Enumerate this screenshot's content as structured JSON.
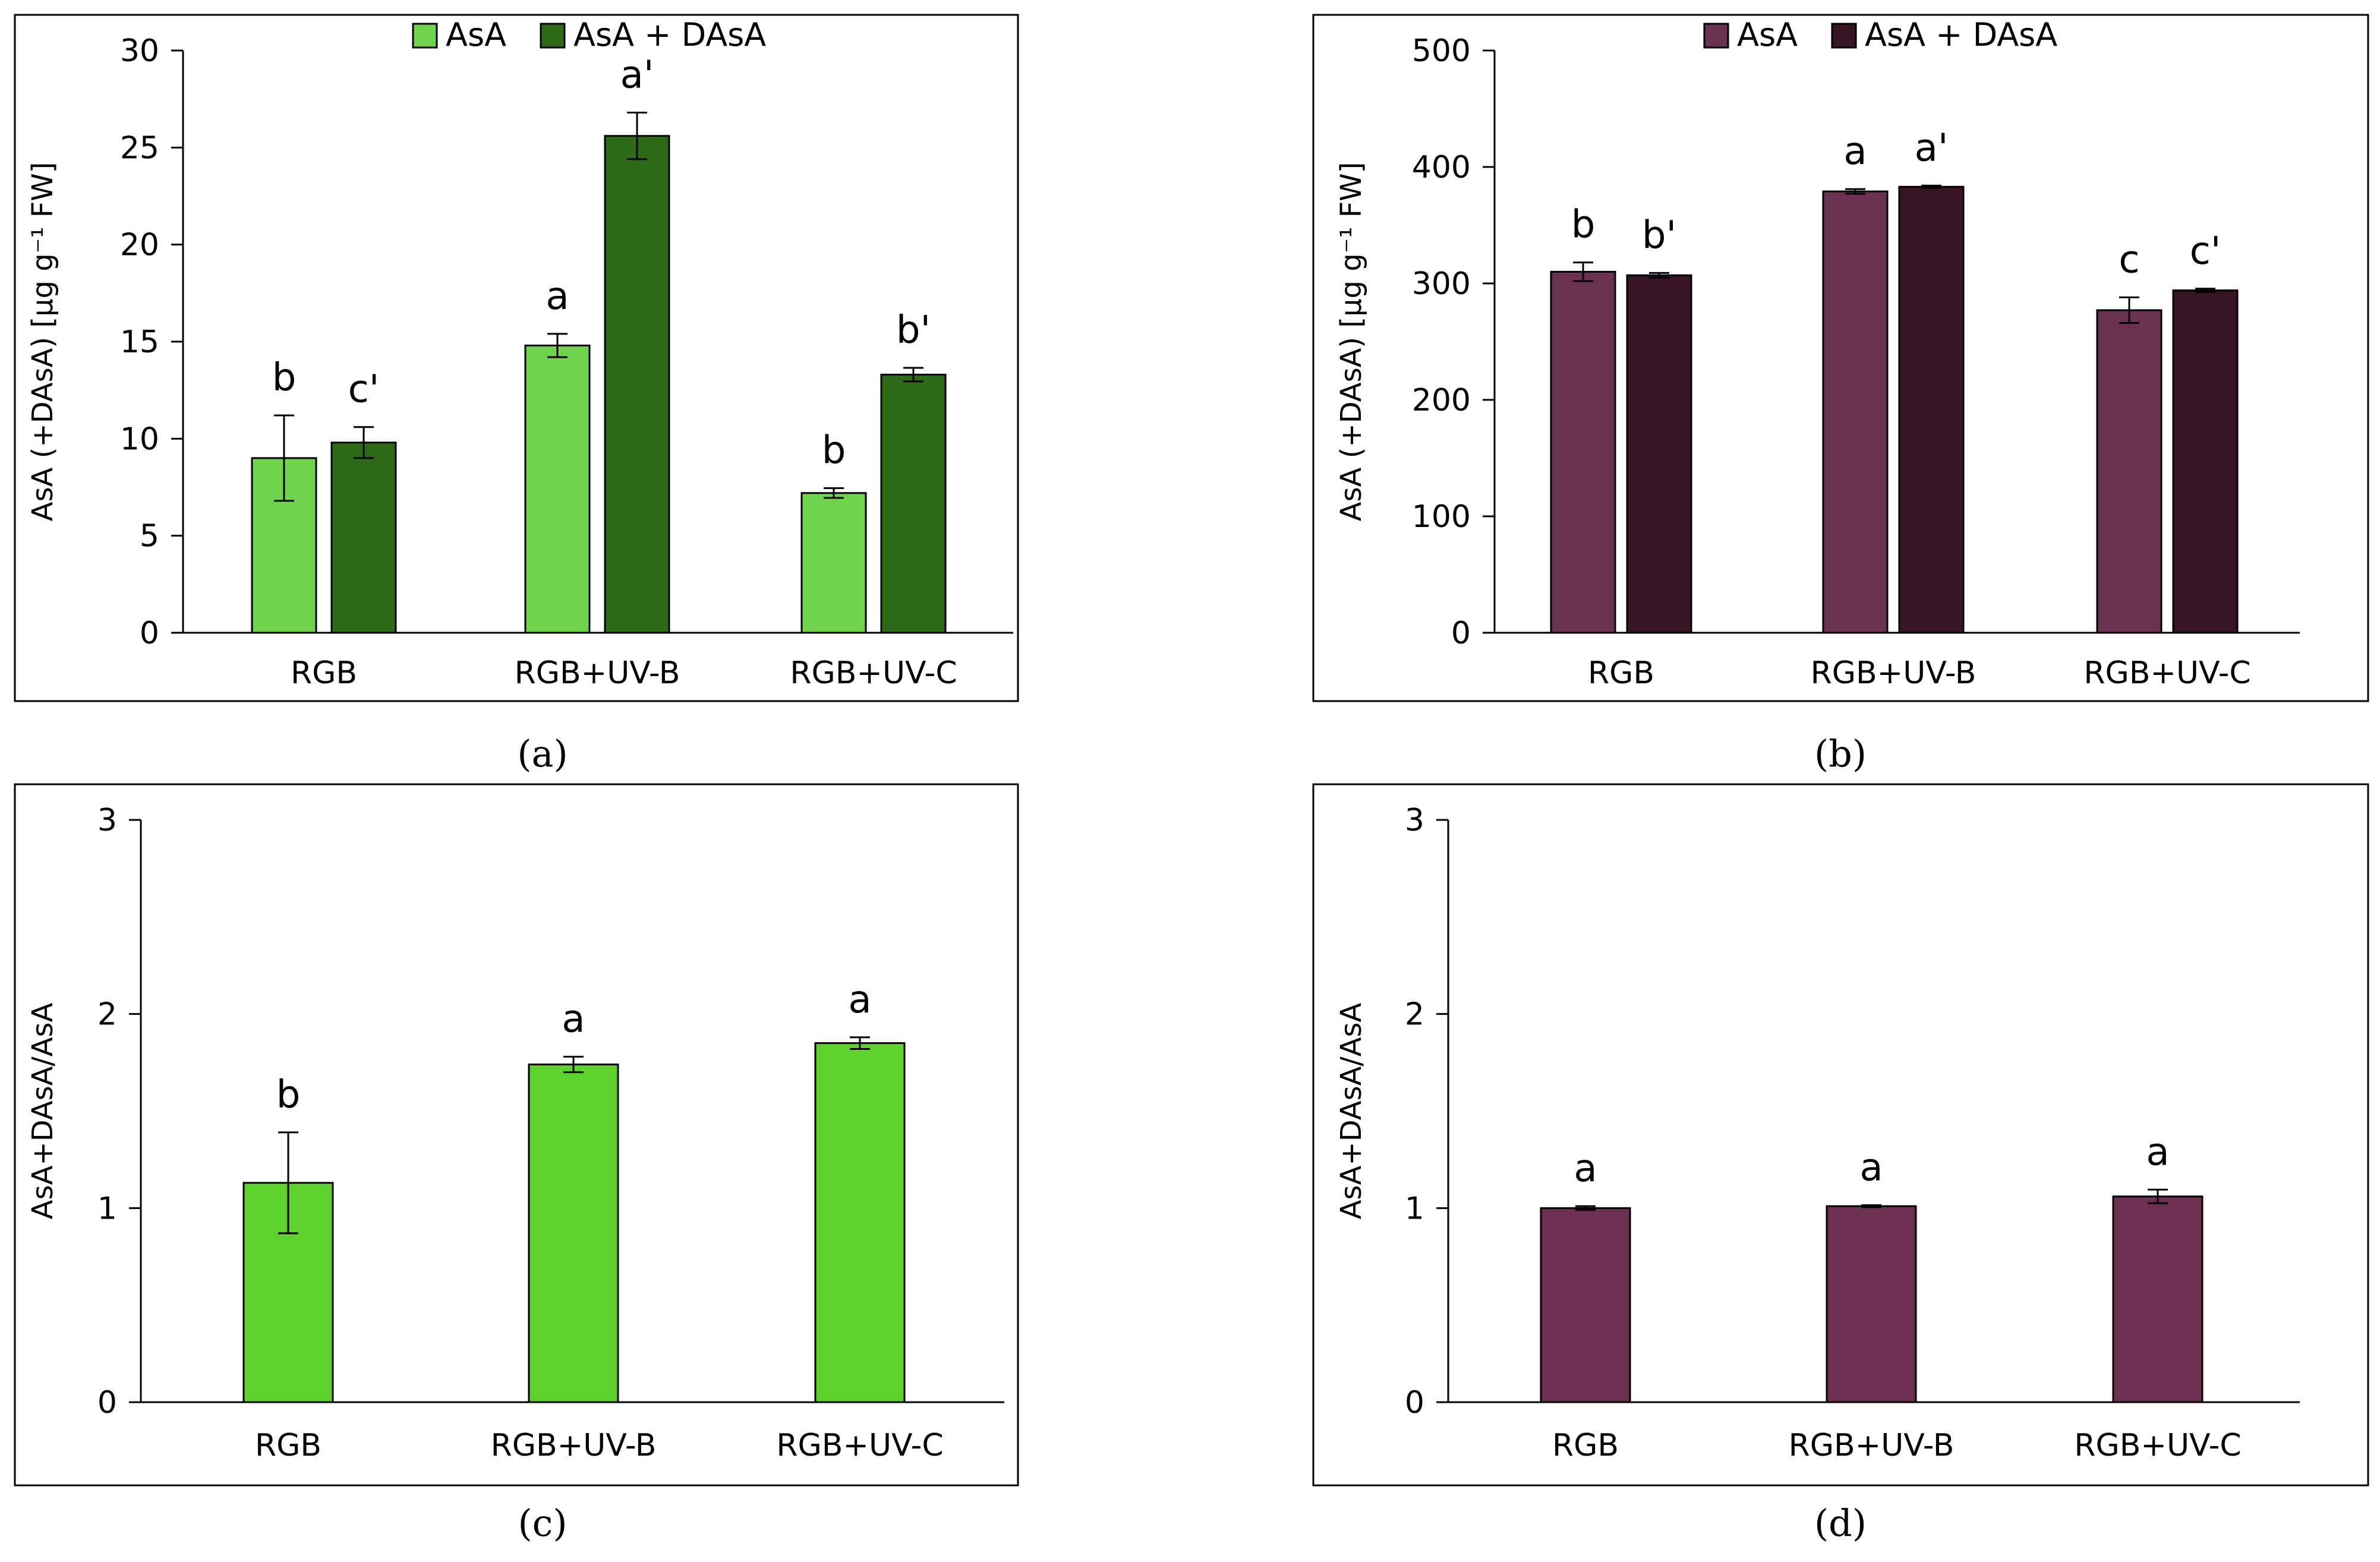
{
  "figure": {
    "captions": [
      "(a)",
      "(b)",
      "(c)",
      "(d)"
    ]
  },
  "colors": {
    "asa_green": "#6fd44b",
    "total_green": "#2e6a18",
    "ratio_green": "#5ed12c",
    "asa_purple": "#6b3150",
    "total_purple": "#3a1528",
    "ratio_purple": "#6d2f52"
  },
  "chart_data": [
    {
      "type": "bar",
      "panel": "a",
      "caption": "(a)",
      "categories": [
        "RGB",
        "RGB+UV-B",
        "RGB+UV-C"
      ],
      "ylabel": "AsA (+DAsA) [µg g⁻¹ FW]",
      "ylim": [
        0,
        30
      ],
      "yticks": [
        0,
        5,
        10,
        15,
        20,
        25,
        30
      ],
      "legend_position": "top-center",
      "series": [
        {
          "name": "AsA",
          "color": "#6fd44b",
          "values": [
            9.0,
            14.8,
            7.2
          ],
          "errors": [
            2.2,
            0.6,
            0.25
          ],
          "letters": [
            "b",
            "a",
            "b"
          ]
        },
        {
          "name": "AsA + DAsA",
          "color": "#2e6a18",
          "values": [
            9.8,
            25.6,
            13.3
          ],
          "errors": [
            0.8,
            1.2,
            0.35
          ],
          "letters": [
            "c'",
            "a'",
            "b'"
          ]
        }
      ]
    },
    {
      "type": "bar",
      "panel": "b",
      "caption": "(b)",
      "categories": [
        "RGB",
        "RGB+UV-B",
        "RGB+UV-C"
      ],
      "ylabel": "AsA (+DAsA) [µg g⁻¹ FW]",
      "ylim": [
        0,
        500
      ],
      "yticks": [
        0,
        100,
        200,
        300,
        400,
        500
      ],
      "legend_position": "top-center",
      "series": [
        {
          "name": "AsA",
          "color": "#6b3150",
          "values": [
            310,
            379,
            277
          ],
          "errors": [
            8,
            2,
            11
          ],
          "letters": [
            "b",
            "a",
            "c"
          ]
        },
        {
          "name": "AsA + DAsA",
          "color": "#3a1528",
          "values": [
            307,
            383,
            294
          ],
          "errors": [
            2,
            1,
            1.5
          ],
          "letters": [
            "b'",
            "a'",
            "c'"
          ]
        }
      ]
    },
    {
      "type": "bar",
      "panel": "c",
      "caption": "(c)",
      "categories": [
        "RGB",
        "RGB+UV-B",
        "RGB+UV-C"
      ],
      "ylabel": "AsA+DAsA/AsA",
      "ylim": [
        0,
        3
      ],
      "yticks": [
        0,
        1,
        2,
        3
      ],
      "legend_position": "none",
      "series": [
        {
          "name": "AsA+DAsA/AsA",
          "color": "#5ed12c",
          "values": [
            1.13,
            1.74,
            1.85
          ],
          "errors": [
            0.26,
            0.04,
            0.03
          ],
          "letters": [
            "b",
            "a",
            "a"
          ]
        }
      ]
    },
    {
      "type": "bar",
      "panel": "d",
      "caption": "(d)",
      "categories": [
        "RGB",
        "RGB+UV-B",
        "RGB+UV-C"
      ],
      "ylabel": "AsA+DAsA/AsA",
      "ylim": [
        0,
        3
      ],
      "yticks": [
        0,
        1,
        2,
        3
      ],
      "legend_position": "none",
      "series": [
        {
          "name": "AsA+DAsA/AsA",
          "color": "#6d2f52",
          "values": [
            1.0,
            1.01,
            1.06
          ],
          "errors": [
            0.01,
            0.005,
            0.035
          ],
          "letters": [
            "a",
            "a",
            "a"
          ]
        }
      ]
    }
  ]
}
